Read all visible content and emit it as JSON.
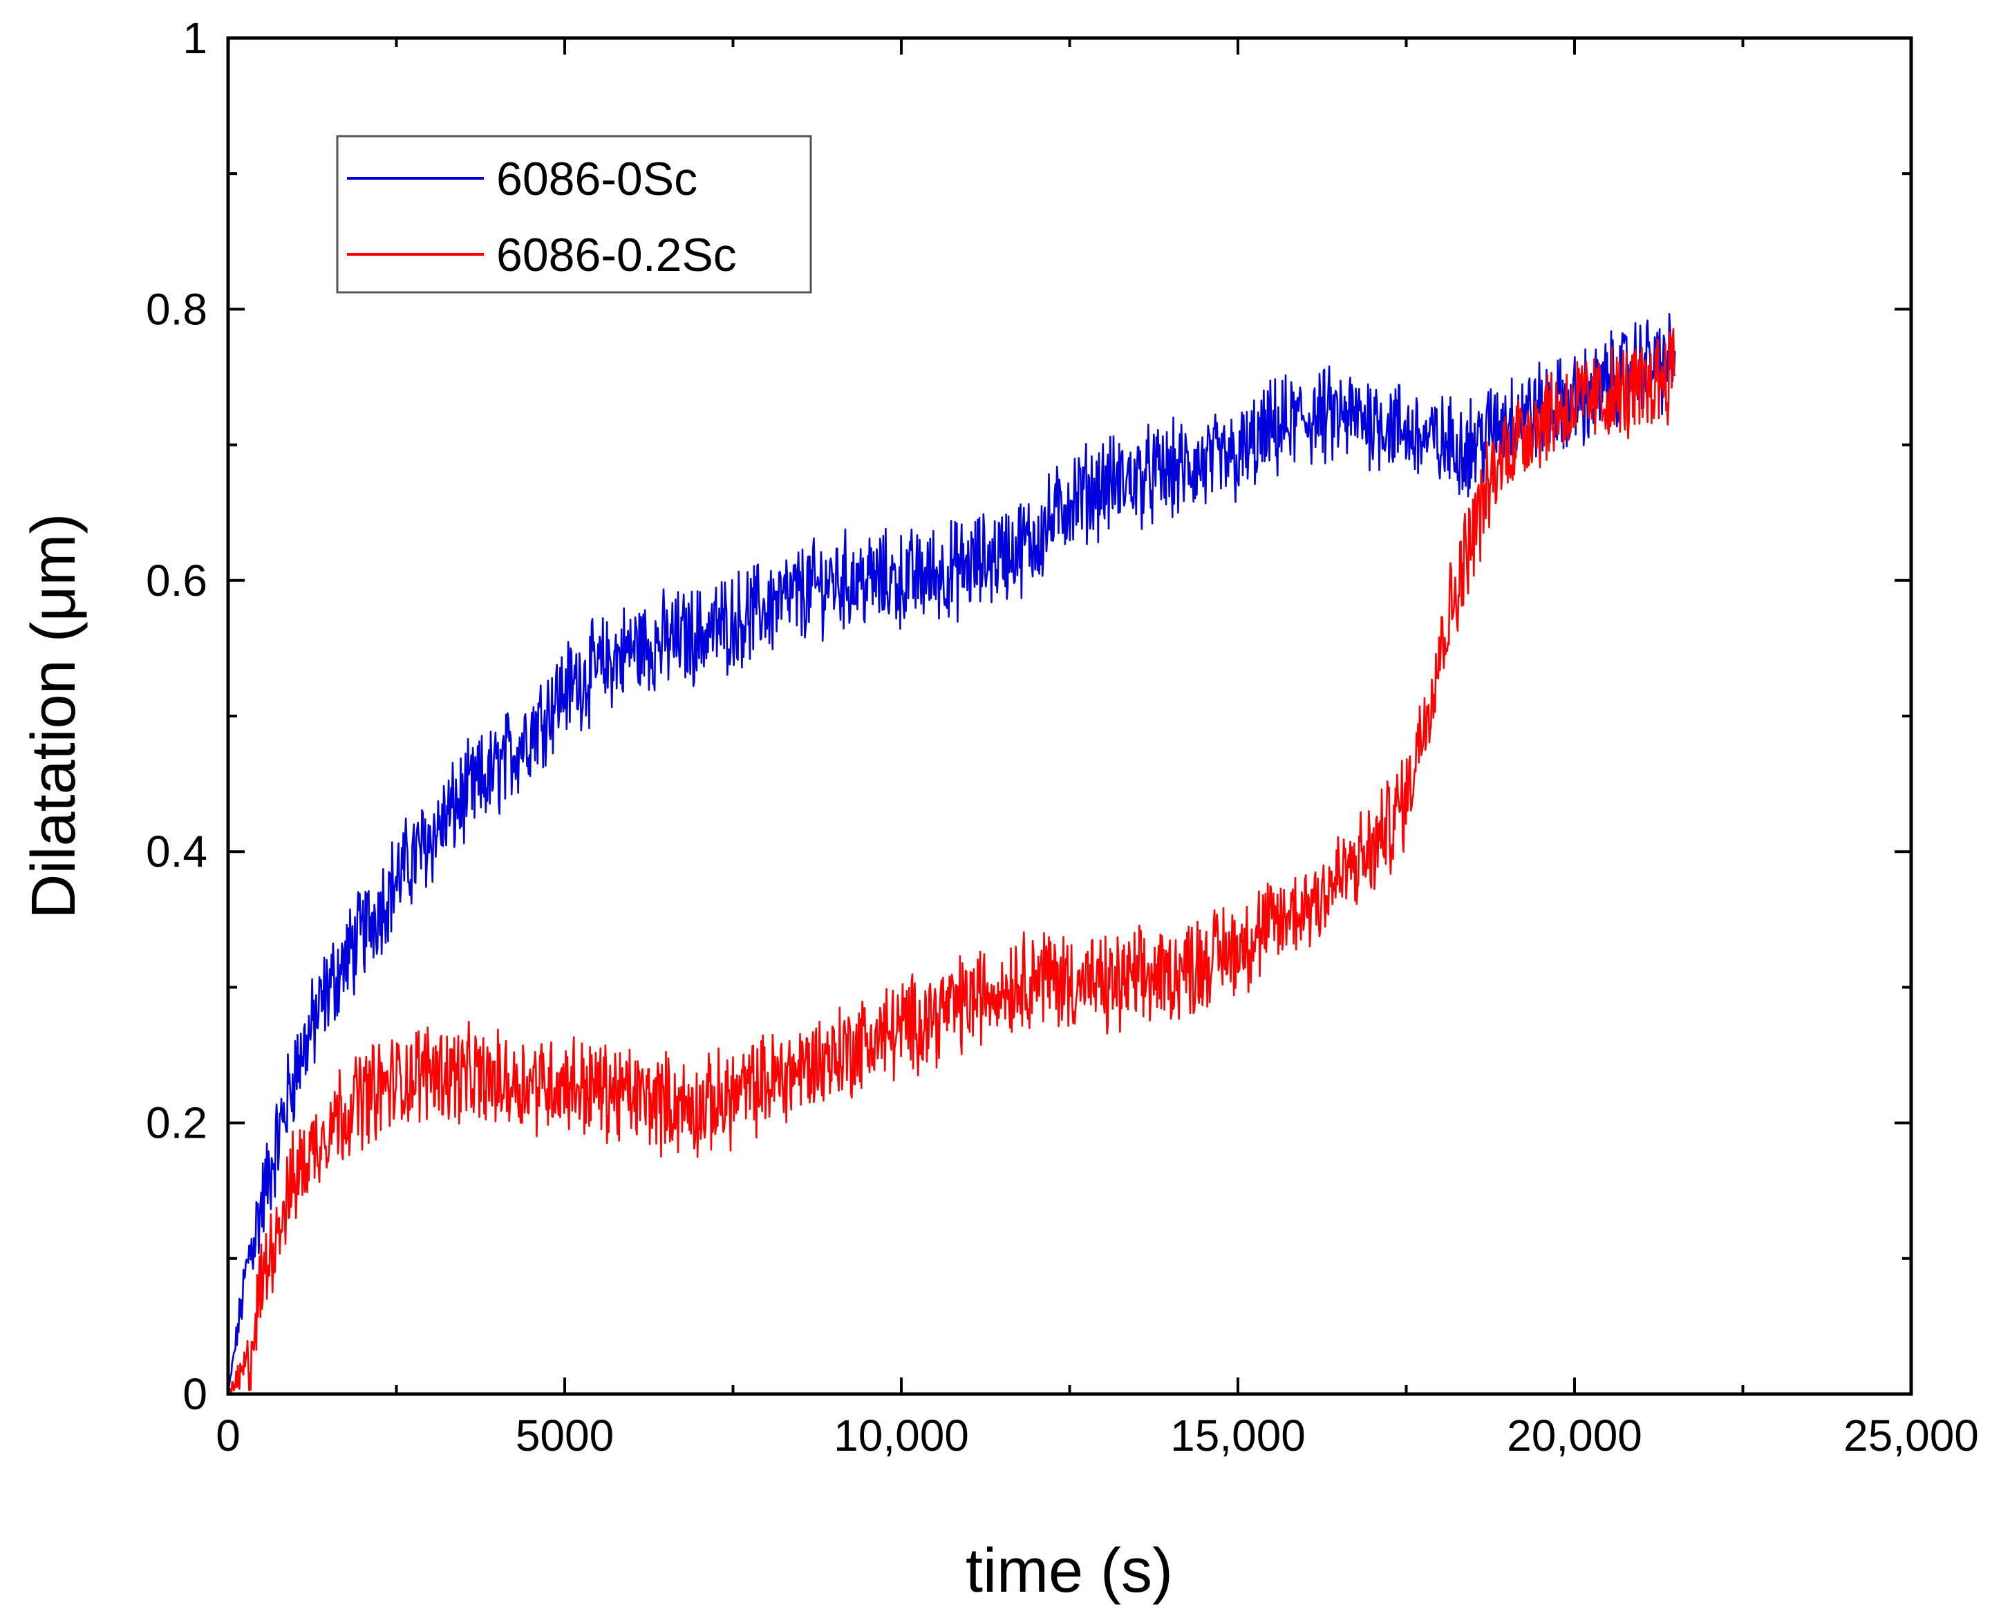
{
  "chart_data": {
    "type": "line",
    "title": "",
    "xlabel": "time (s)",
    "ylabel": "Dilatation (μm)",
    "xlim": [
      0,
      25000
    ],
    "ylim": [
      0,
      1
    ],
    "x_ticks": [
      0,
      5000,
      10000,
      15000,
      20000,
      25000
    ],
    "x_tick_labels": [
      "0",
      "5000",
      "10,000",
      "15,000",
      "20,000",
      "25,000"
    ],
    "y_ticks": [
      0,
      0.2,
      0.4,
      0.6,
      0.8,
      1
    ],
    "y_tick_labels": [
      "0",
      "0.2",
      "0.4",
      "0.6",
      "0.8",
      "1"
    ],
    "legend_position": "top-left",
    "grid": false,
    "series": [
      {
        "name": "6086-0Sc",
        "color": "#0000dd",
        "noise": 0.03,
        "x": [
          0,
          300,
          700,
          1000,
          1500,
          2000,
          2500,
          3000,
          3500,
          4000,
          4500,
          5000,
          6000,
          7000,
          8000,
          9000,
          10000,
          11000,
          12000,
          12500,
          13000,
          14000,
          15000,
          15500,
          16000,
          17000,
          18000,
          18500,
          19000,
          20000,
          21000,
          21500
        ],
        "y": [
          0,
          0.1,
          0.18,
          0.24,
          0.3,
          0.34,
          0.38,
          0.41,
          0.44,
          0.46,
          0.49,
          0.52,
          0.55,
          0.56,
          0.58,
          0.6,
          0.6,
          0.61,
          0.63,
          0.66,
          0.67,
          0.68,
          0.69,
          0.71,
          0.72,
          0.72,
          0.7,
          0.7,
          0.72,
          0.73,
          0.76,
          0.76
        ]
      },
      {
        "name": "6086-0.2Sc",
        "color": "#ff0000",
        "noise": 0.03,
        "x": [
          0,
          300,
          500,
          700,
          1000,
          1500,
          2000,
          3000,
          4000,
          5000,
          6000,
          7000,
          8000,
          9000,
          10000,
          11000,
          12000,
          13000,
          14000,
          15000,
          16000,
          17000,
          17500,
          18000,
          18500,
          19000,
          19500,
          20000,
          21000,
          21500
        ],
        "y": [
          0,
          0.02,
          0.08,
          0.12,
          0.16,
          0.2,
          0.22,
          0.24,
          0.23,
          0.23,
          0.22,
          0.21,
          0.23,
          0.25,
          0.27,
          0.29,
          0.31,
          0.3,
          0.31,
          0.33,
          0.36,
          0.4,
          0.44,
          0.55,
          0.64,
          0.7,
          0.72,
          0.73,
          0.74,
          0.76
        ]
      }
    ]
  }
}
